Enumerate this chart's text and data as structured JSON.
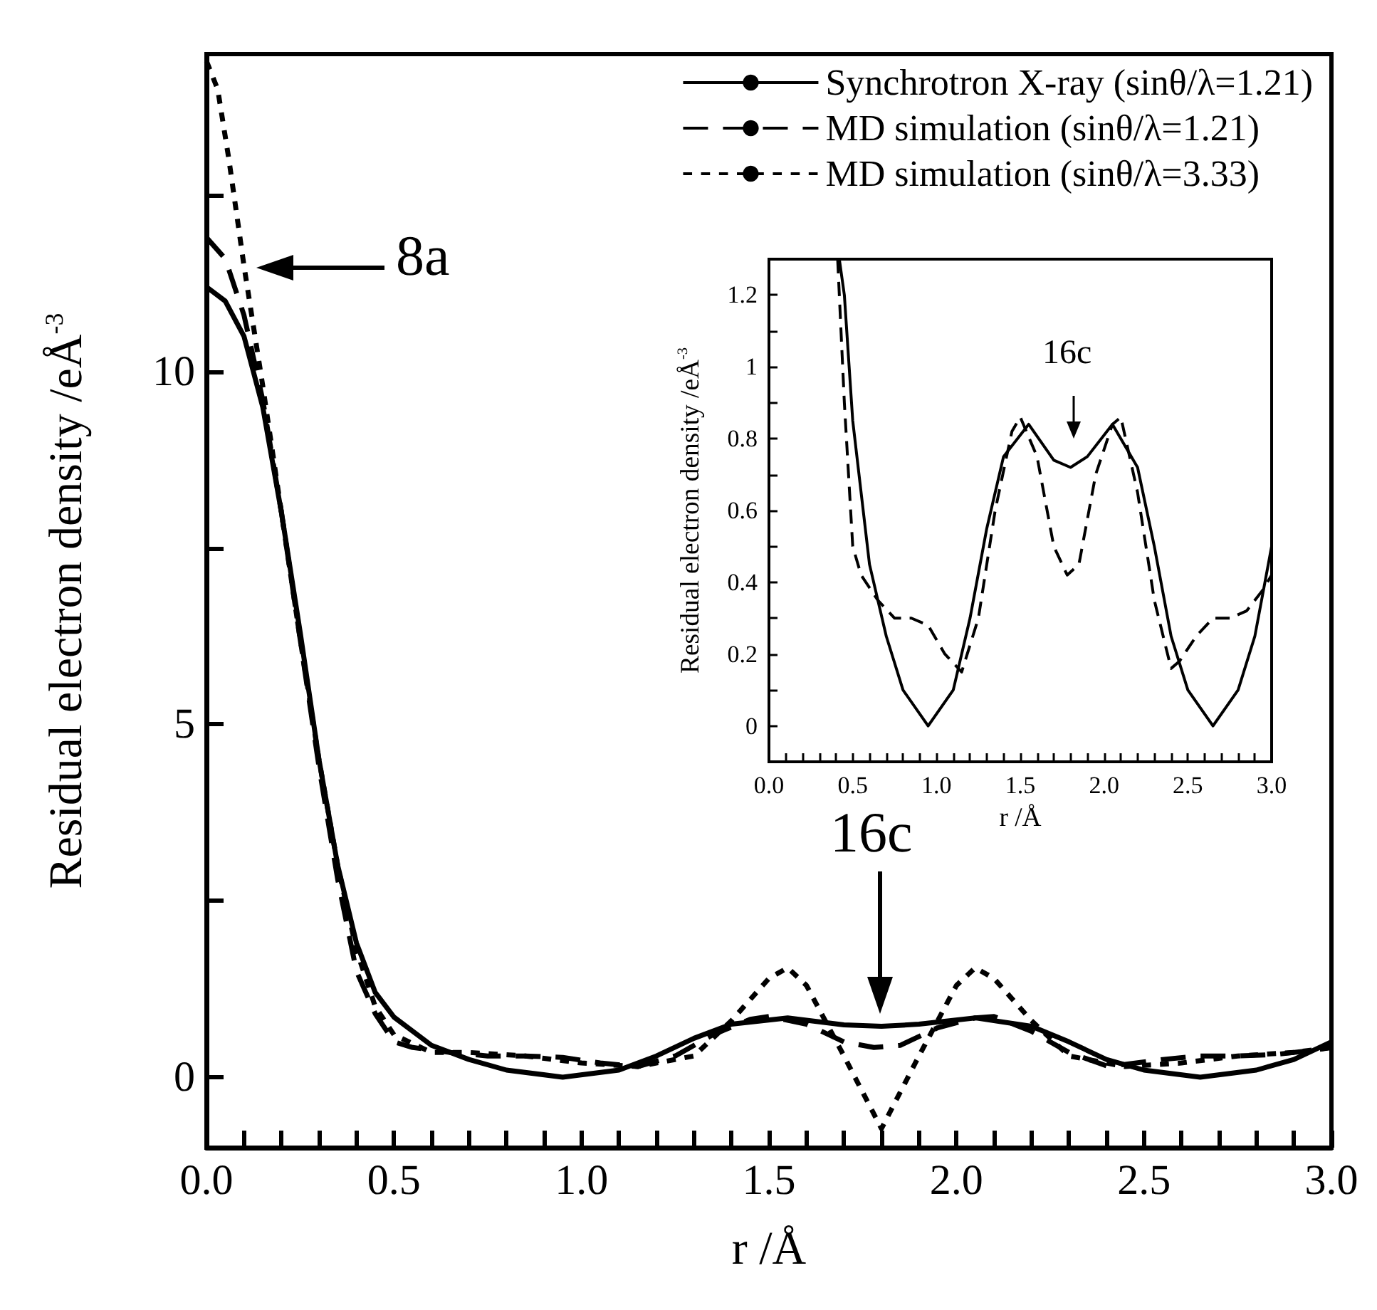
{
  "chart_data": [
    {
      "type": "line",
      "xlabel": "r /Å",
      "ylabel": "Residual electron density /eÅ$^{-3}$",
      "xlim": [
        0,
        3
      ],
      "ylim": [
        -1,
        14.5
      ],
      "xticks": [
        {
          "value": 0,
          "label": "0.0"
        },
        {
          "value": 0.1,
          "label": null
        },
        {
          "value": 0.2,
          "label": null
        },
        {
          "value": 0.3,
          "label": null
        },
        {
          "value": 0.4,
          "label": null
        },
        {
          "value": 0.5,
          "label": "0.5"
        },
        {
          "value": 0.6,
          "label": null
        },
        {
          "value": 0.7,
          "label": null
        },
        {
          "value": 0.8,
          "label": null
        },
        {
          "value": 0.9,
          "label": null
        },
        {
          "value": 1,
          "label": "1.0"
        },
        {
          "value": 1.1,
          "label": null
        },
        {
          "value": 1.2,
          "label": null
        },
        {
          "value": 1.3,
          "label": null
        },
        {
          "value": 1.4,
          "label": null
        },
        {
          "value": 1.5,
          "label": "1.5"
        },
        {
          "value": 1.6,
          "label": null
        },
        {
          "value": 1.7,
          "label": null
        },
        {
          "value": 1.8,
          "label": null
        },
        {
          "value": 1.9,
          "label": null
        },
        {
          "value": 2,
          "label": "2.0"
        },
        {
          "value": 2.1,
          "label": null
        },
        {
          "value": 2.2,
          "label": null
        },
        {
          "value": 2.3,
          "label": null
        },
        {
          "value": 2.4,
          "label": null
        },
        {
          "value": 2.5,
          "label": "2.5"
        },
        {
          "value": 2.6,
          "label": null
        },
        {
          "value": 2.7,
          "label": null
        },
        {
          "value": 2.8,
          "label": null
        },
        {
          "value": 2.9,
          "label": null
        },
        {
          "value": 3,
          "label": "3.0"
        }
      ],
      "yticks": [
        0,
        {
          "value": 2.5,
          "label": null
        },
        5,
        {
          "value": 7.5,
          "label": null
        },
        10,
        {
          "value": 12.5,
          "label": null
        }
      ],
      "legend": "top right",
      "annotations": [
        "8a",
        "16c"
      ],
      "series": [
        {
          "name": "Synchrotron X-ray (sinθ/λ=1.21)",
          "color": "#000000",
          "line_style": "solid",
          "x": [
            0,
            0.05,
            0.1,
            0.15,
            0.2,
            0.25,
            0.3,
            0.35,
            0.4,
            0.45,
            0.5,
            0.6,
            0.7,
            0.8,
            0.95,
            1.1,
            1.2,
            1.3,
            1.4,
            1.55,
            1.7,
            1.8,
            1.9,
            2.05,
            2.2,
            2.3,
            2.4,
            2.5,
            2.65,
            2.8,
            2.9,
            3
          ],
          "values": [
            11.2,
            11,
            10.5,
            9.5,
            8,
            6.3,
            4.5,
            3,
            1.9,
            1.2,
            0.85,
            0.45,
            0.25,
            0.1,
            0,
            0.1,
            0.3,
            0.55,
            0.75,
            0.84,
            0.74,
            0.72,
            0.75,
            0.84,
            0.72,
            0.5,
            0.25,
            0.1,
            0,
            0.1,
            0.25,
            0.5
          ]
        },
        {
          "name": "MD simulation (sinθ/λ=1.21)",
          "color": "#000000",
          "line_style": "dashed",
          "x": [
            0,
            0.05,
            0.1,
            0.15,
            0.2,
            0.25,
            0.3,
            0.35,
            0.4,
            0.45,
            0.5,
            0.55,
            0.65,
            0.75,
            0.85,
            0.95,
            1.05,
            1.15,
            1.25,
            1.35,
            1.45,
            1.5,
            1.6,
            1.7,
            1.78,
            1.85,
            1.95,
            2.05,
            2.1,
            2.2,
            2.3,
            2.4,
            2.45,
            2.55,
            2.65,
            2.75,
            2.85,
            2.95,
            3
          ],
          "values": [
            11.9,
            11.6,
            10.8,
            9.6,
            8,
            6.2,
            4.4,
            2.8,
            1.5,
            0.9,
            0.5,
            0.42,
            0.35,
            0.3,
            0.3,
            0.28,
            0.2,
            0.15,
            0.3,
            0.6,
            0.82,
            0.86,
            0.75,
            0.5,
            0.42,
            0.45,
            0.7,
            0.84,
            0.86,
            0.65,
            0.35,
            0.16,
            0.18,
            0.25,
            0.3,
            0.3,
            0.32,
            0.38,
            0.42
          ]
        },
        {
          "name": "MD simulation (sinθ/λ=3.33)",
          "color": "#000000",
          "line_style": "dotted",
          "x": [
            0,
            0.03,
            0.06,
            0.1,
            0.15,
            0.2,
            0.25,
            0.3,
            0.35,
            0.4,
            0.45,
            0.5,
            0.6,
            0.7,
            0.85,
            1,
            1.15,
            1.3,
            1.4,
            1.5,
            1.55,
            1.6,
            1.7,
            1.8,
            1.9,
            2,
            2.05,
            2.1,
            2.2,
            2.3,
            2.45,
            2.6,
            2.75,
            2.9,
            3
          ],
          "values": [
            14.4,
            14,
            13,
            11.5,
            9.8,
            8,
            6.2,
            4.5,
            3,
            1.8,
            1,
            0.6,
            0.35,
            0.35,
            0.3,
            0.2,
            0.15,
            0.3,
            0.8,
            1.4,
            1.55,
            1.3,
            0.3,
            -0.73,
            0.3,
            1.3,
            1.55,
            1.4,
            0.8,
            0.3,
            0.15,
            0.2,
            0.3,
            0.35,
            0.42
          ]
        }
      ]
    },
    {
      "type": "line",
      "xlabel": "r /Å",
      "ylabel": "Residual electron density /eÅ$^{-3}$",
      "xlim": [
        0,
        3
      ],
      "ylim": [
        -0.1,
        1.3
      ],
      "xticks": [
        {
          "value": 0,
          "label": "0.0"
        },
        {
          "value": 0.1,
          "label": null
        },
        {
          "value": 0.2,
          "label": null
        },
        {
          "value": 0.3,
          "label": null
        },
        {
          "value": 0.4,
          "label": null
        },
        {
          "value": 0.5,
          "label": "0.5"
        },
        {
          "value": 0.6,
          "label": null
        },
        {
          "value": 0.7,
          "label": null
        },
        {
          "value": 0.8,
          "label": null
        },
        {
          "value": 0.9,
          "label": null
        },
        {
          "value": 1,
          "label": "1.0"
        },
        {
          "value": 1.1,
          "label": null
        },
        {
          "value": 1.2,
          "label": null
        },
        {
          "value": 1.3,
          "label": null
        },
        {
          "value": 1.4,
          "label": null
        },
        {
          "value": 1.5,
          "label": "1.5"
        },
        {
          "value": 1.6,
          "label": null
        },
        {
          "value": 1.7,
          "label": null
        },
        {
          "value": 1.8,
          "label": null
        },
        {
          "value": 1.9,
          "label": null
        },
        {
          "value": 2,
          "label": "2.0"
        },
        {
          "value": 2.1,
          "label": null
        },
        {
          "value": 2.2,
          "label": null
        },
        {
          "value": 2.3,
          "label": null
        },
        {
          "value": 2.4,
          "label": null
        },
        {
          "value": 2.5,
          "label": "2.5"
        },
        {
          "value": 2.6,
          "label": null
        },
        {
          "value": 2.7,
          "label": null
        },
        {
          "value": 2.8,
          "label": null
        },
        {
          "value": 2.9,
          "label": null
        },
        {
          "value": 3,
          "label": "3.0"
        }
      ],
      "yticks": [
        0,
        {
          "value": 0.1,
          "label": null
        },
        0.2,
        {
          "value": 0.3,
          "label": null
        },
        0.4,
        {
          "value": 0.5,
          "label": null
        },
        0.6,
        {
          "value": 0.7,
          "label": null
        },
        0.8,
        {
          "value": 0.9,
          "label": null
        },
        1,
        {
          "value": 1.1,
          "label": null
        },
        1.2
      ],
      "annotations": [
        "16c"
      ],
      "series": [
        {
          "color": "#000000",
          "line_style": "solid",
          "x": [
            0.42,
            0.45,
            0.5,
            0.6,
            0.7,
            0.8,
            0.95,
            1.1,
            1.2,
            1.3,
            1.4,
            1.55,
            1.7,
            1.8,
            1.9,
            2.05,
            2.2,
            2.3,
            2.4,
            2.5,
            2.65,
            2.8,
            2.9,
            3
          ],
          "values": [
            1.3,
            1.2,
            0.85,
            0.45,
            0.25,
            0.1,
            0,
            0.1,
            0.3,
            0.55,
            0.75,
            0.84,
            0.74,
            0.72,
            0.75,
            0.84,
            0.72,
            0.5,
            0.25,
            0.1,
            0,
            0.1,
            0.25,
            0.5
          ]
        },
        {
          "color": "#000000",
          "line_style": "dashed",
          "x": [
            0.41,
            0.45,
            0.5,
            0.55,
            0.65,
            0.75,
            0.85,
            0.95,
            1.05,
            1.15,
            1.25,
            1.35,
            1.45,
            1.5,
            1.6,
            1.7,
            1.78,
            1.85,
            1.95,
            2.05,
            2.1,
            2.2,
            2.3,
            2.4,
            2.45,
            2.55,
            2.65,
            2.75,
            2.85,
            2.95,
            3
          ],
          "values": [
            1.3,
            0.9,
            0.5,
            0.42,
            0.35,
            0.3,
            0.3,
            0.28,
            0.2,
            0.15,
            0.3,
            0.6,
            0.82,
            0.86,
            0.75,
            0.5,
            0.42,
            0.45,
            0.7,
            0.84,
            0.86,
            0.65,
            0.35,
            0.16,
            0.18,
            0.25,
            0.3,
            0.3,
            0.32,
            0.38,
            0.42
          ]
        }
      ]
    }
  ]
}
